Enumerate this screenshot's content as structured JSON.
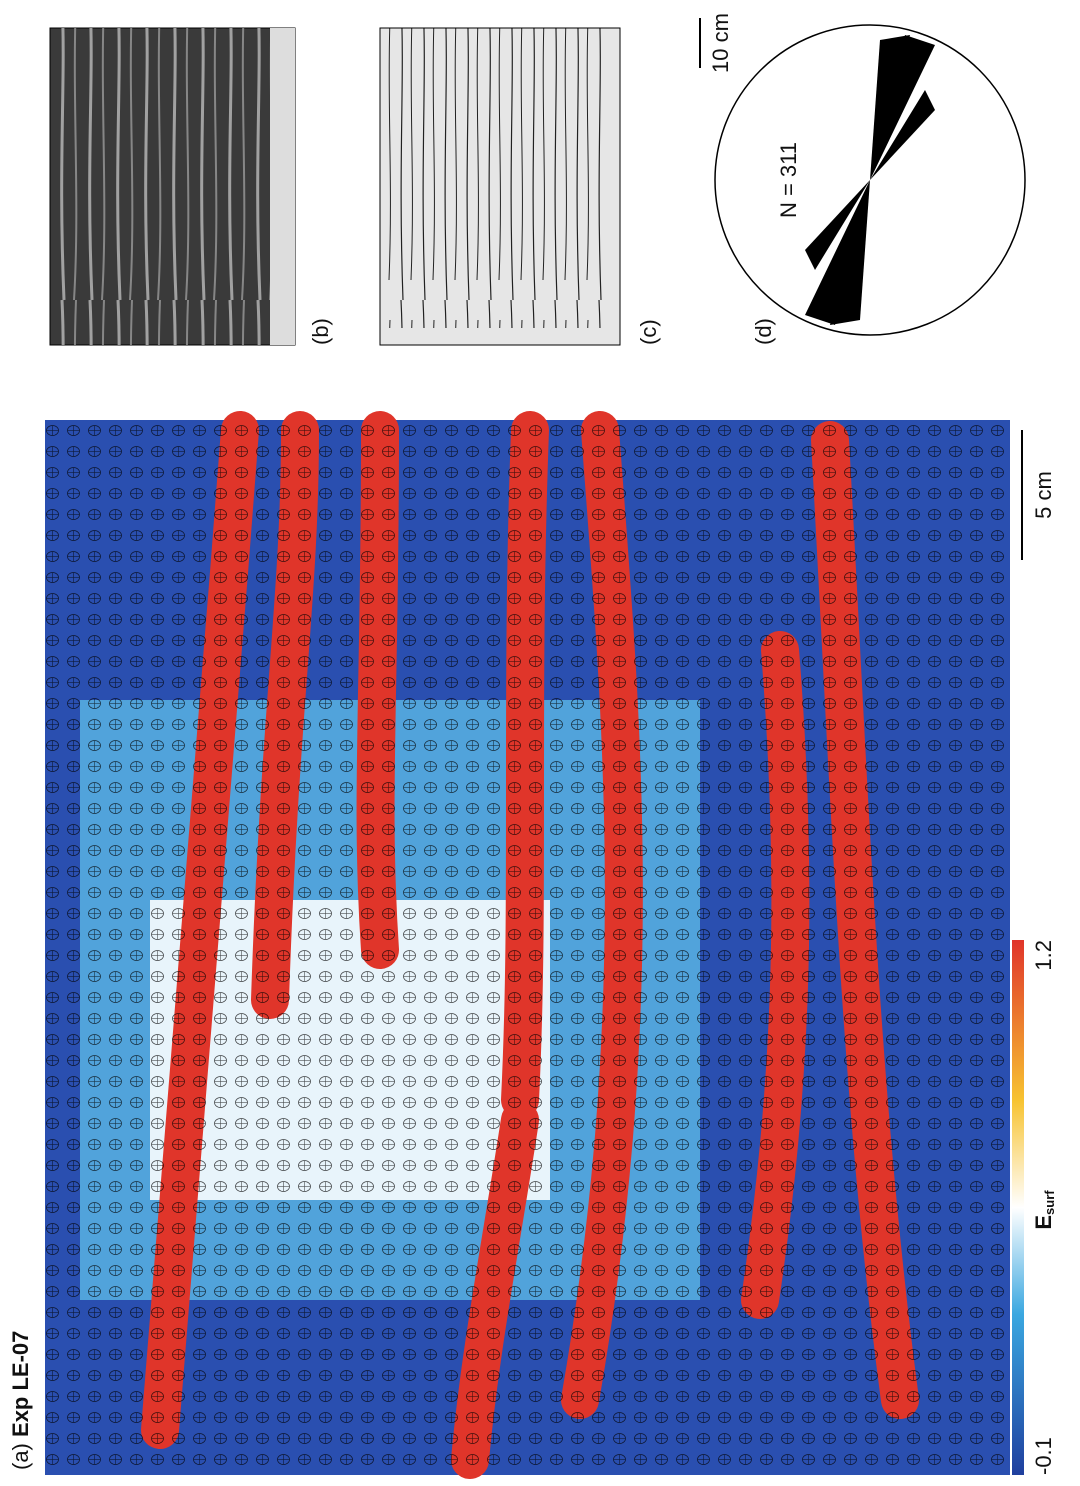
{
  "panel_a": {
    "label": "(a)",
    "title": "Exp LE-07",
    "scale_bar": "5 cm",
    "colorbar": {
      "name": "E",
      "subscript": "surf",
      "min": -0.1,
      "max": 1.2
    }
  },
  "panel_b": {
    "label": "(b)"
  },
  "panel_c": {
    "label": "(c)",
    "scale_bar": "10 cm"
  },
  "panel_d": {
    "label": "(d)",
    "count": "N = 311"
  }
}
